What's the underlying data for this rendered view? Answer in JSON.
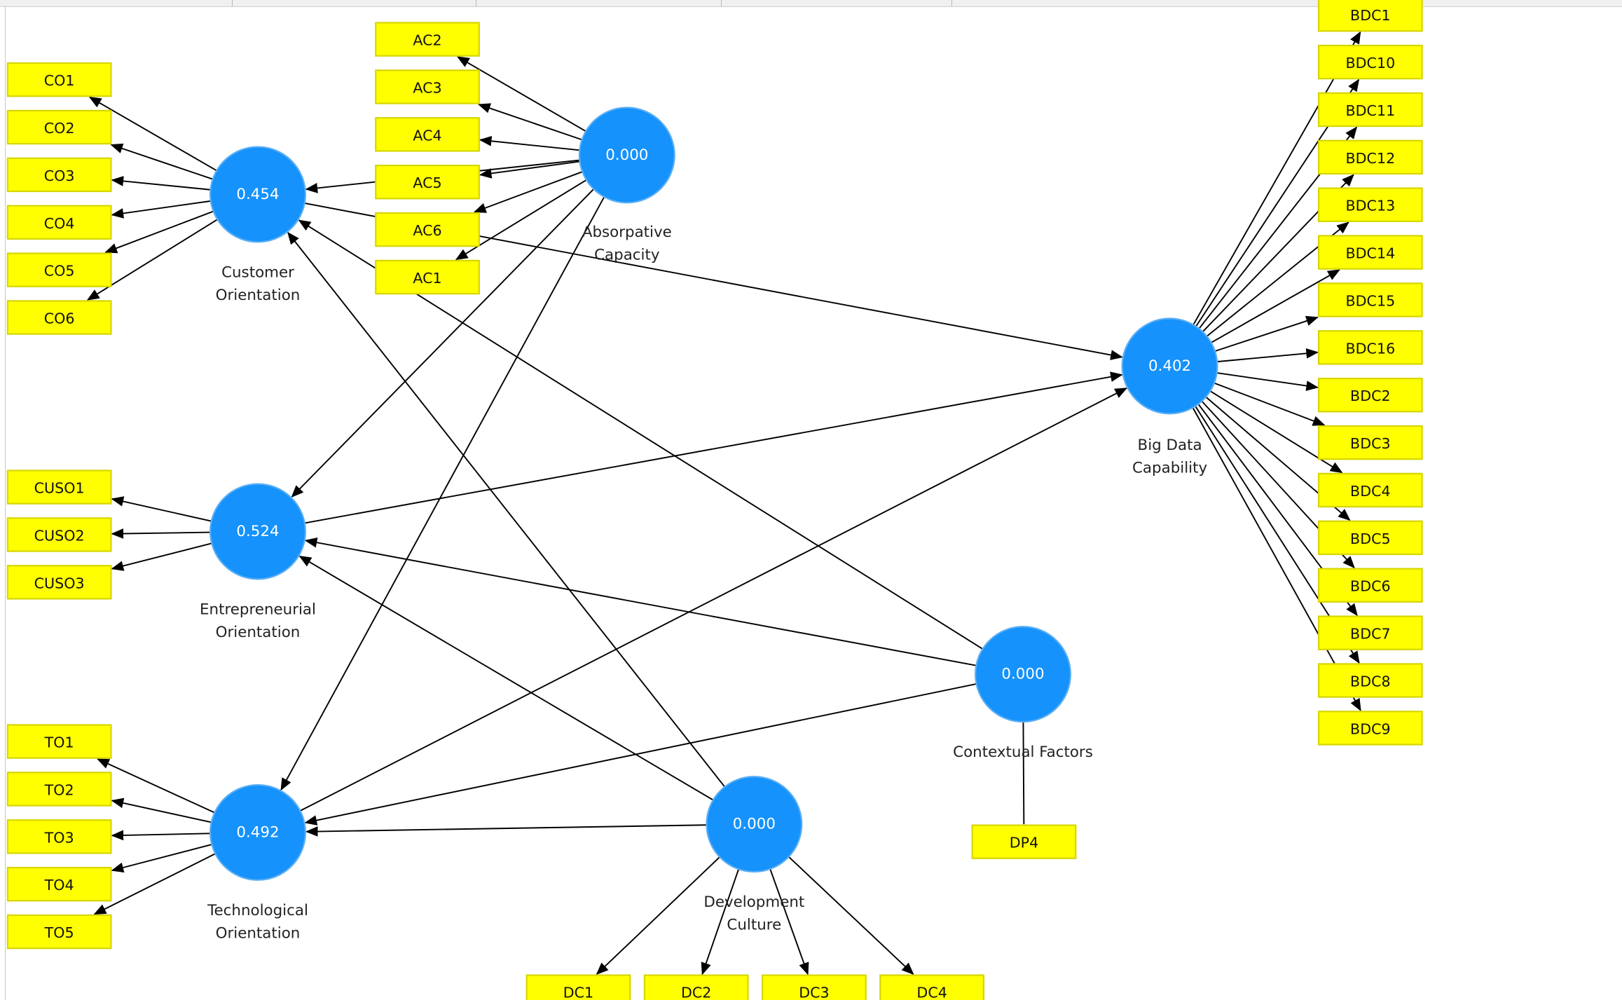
{
  "constructs": [
    {
      "id": "CO",
      "label_lines": [
        "Customer",
        "Orientation"
      ],
      "value": "0.454",
      "indicators": [
        "CO1",
        "CO2",
        "CO3",
        "CO4",
        "CO5",
        "CO6"
      ]
    },
    {
      "id": "AC",
      "label_lines": [
        "Absorpative",
        "Capacity"
      ],
      "value": "0.000",
      "indicators": [
        "AC2",
        "AC3",
        "AC4",
        "AC5",
        "AC6",
        "AC1"
      ]
    },
    {
      "id": "EO",
      "label_lines": [
        "Entrepreneurial",
        "Orientation"
      ],
      "value": "0.524",
      "indicators": [
        "CUSO1",
        "CUSO2",
        "CUSO3"
      ]
    },
    {
      "id": "TO",
      "label_lines": [
        "Technological",
        "Orientation"
      ],
      "value": "0.492",
      "indicators": [
        "TO1",
        "TO2",
        "TO3",
        "TO4",
        "TO5"
      ]
    },
    {
      "id": "DC",
      "label_lines": [
        "Development",
        "Culture"
      ],
      "value": "0.000",
      "indicators": [
        "DC1",
        "DC2",
        "DC3",
        "DC4"
      ]
    },
    {
      "id": "CF",
      "label_lines": [
        "Contextual Factors"
      ],
      "value": "0.000",
      "indicators": [
        "DP4"
      ]
    },
    {
      "id": "BDC",
      "label_lines": [
        "Big Data",
        "Capability"
      ],
      "value": "0.402",
      "indicators": [
        "BDC1",
        "BDC10",
        "BDC11",
        "BDC12",
        "BDC13",
        "BDC14",
        "BDC15",
        "BDC16",
        "BDC2",
        "BDC3",
        "BDC4",
        "BDC5",
        "BDC6",
        "BDC7",
        "BDC8",
        "BDC9"
      ]
    }
  ],
  "paths": [
    [
      "AC",
      "CO"
    ],
    [
      "AC",
      "EO"
    ],
    [
      "AC",
      "TO"
    ],
    [
      "CO",
      "BDC"
    ],
    [
      "EO",
      "BDC"
    ],
    [
      "TO",
      "BDC"
    ],
    [
      "DC",
      "CO"
    ],
    [
      "DC",
      "EO"
    ],
    [
      "DC",
      "TO"
    ],
    [
      "CF",
      "CO"
    ],
    [
      "CF",
      "EO"
    ],
    [
      "CF",
      "TO"
    ]
  ],
  "colors": {
    "construct": "#1592fb",
    "indicator": "#ffff00",
    "edge": "#000000"
  }
}
